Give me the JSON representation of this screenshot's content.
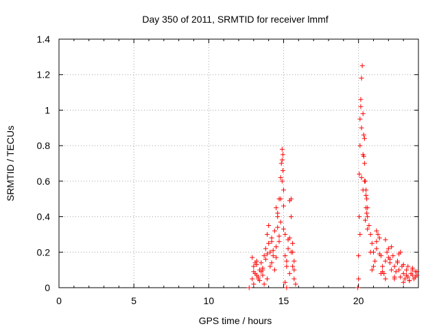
{
  "chart_data": {
    "type": "scatter",
    "title": "Day 350 of 2011, SRMTID for receiver lmmf",
    "xlabel": "GPS time / hours",
    "ylabel": "SRMTID / TECUs",
    "xlim": [
      0,
      24
    ],
    "ylim": [
      0,
      1.4
    ],
    "xticks": [
      0,
      5,
      10,
      15,
      20
    ],
    "xtick_labels": [
      "0",
      "5",
      "10",
      "15",
      "20"
    ],
    "yticks": [
      0,
      0.2,
      0.4,
      0.6,
      0.8,
      1.0,
      1.2,
      1.4
    ],
    "ytick_labels": [
      "0",
      "0.2",
      "0.4",
      "0.6",
      "0.8",
      "1",
      "1.2",
      "1.4"
    ],
    "grid": true,
    "marker": "+",
    "color": "#ff0000",
    "series": [
      {
        "x": [
          12.7,
          12.9,
          13.0,
          13.1,
          13.2,
          13.3,
          13.4,
          13.5,
          13.6,
          13.7,
          13.8,
          13.9,
          14.0,
          14.1,
          14.2,
          14.3,
          14.4,
          14.5,
          14.6,
          14.7,
          14.8,
          14.85,
          14.9,
          14.95,
          15.0,
          15.1,
          15.2,
          15.3,
          15.4,
          15.5,
          15.6,
          15.7,
          15.8,
          12.9,
          13.0,
          13.2,
          13.4,
          13.6,
          13.8,
          14.0,
          14.2,
          14.4,
          14.6,
          14.8,
          15.0,
          15.2,
          15.4,
          15.6,
          13.0,
          13.3,
          13.6,
          13.9,
          14.2,
          14.5,
          14.8,
          15.1,
          15.4,
          15.7,
          13.1,
          13.5,
          13.9,
          14.3,
          14.7,
          15.1,
          15.5,
          13.2,
          13.7,
          14.1,
          14.5,
          14.9,
          15.3,
          15.7,
          15.2,
          15.5,
          15.6,
          14.9,
          14.95,
          15.0,
          14.6,
          14.7,
          19.95,
          20.0,
          20.05,
          20.1,
          20.15,
          20.2,
          20.25,
          20.3,
          20.35,
          20.4,
          20.45,
          20.5,
          20.55,
          20.6,
          20.7,
          20.8,
          20.9,
          21.0,
          21.1,
          21.2,
          21.3,
          21.4,
          21.5,
          21.6,
          21.7,
          21.8,
          21.9,
          22.0,
          22.1,
          22.2,
          22.3,
          22.4,
          22.5,
          22.6,
          22.7,
          22.8,
          22.9,
          23.0,
          23.1,
          23.2,
          23.3,
          23.4,
          23.5,
          23.6,
          23.7,
          23.8,
          23.9,
          20.1,
          20.2,
          20.3,
          20.4,
          20.5,
          20.6,
          20.8,
          21.0,
          21.2,
          21.4,
          21.6,
          21.8,
          22.0,
          22.2,
          22.4,
          22.6,
          22.8,
          23.0,
          23.2,
          23.4,
          23.6,
          23.8,
          20.0,
          20.3,
          20.6,
          20.9,
          21.2,
          21.5,
          21.8,
          22.1,
          22.4,
          22.7,
          23.0,
          23.3,
          23.6,
          23.9,
          20.1,
          20.15,
          20.05,
          20.2,
          20.35,
          20.4,
          20.45,
          20.5,
          20.55
        ],
        "y": [
          0.0,
          0.17,
          0.12,
          0.08,
          0.15,
          0.05,
          0.1,
          0.14,
          0.07,
          0.18,
          0.22,
          0.3,
          0.25,
          0.2,
          0.28,
          0.18,
          0.32,
          0.45,
          0.4,
          0.5,
          0.62,
          0.7,
          0.78,
          0.75,
          0.55,
          0.3,
          0.15,
          0.22,
          0.28,
          0.2,
          0.12,
          0.05,
          0.02,
          0.05,
          0.09,
          0.13,
          0.04,
          0.11,
          0.16,
          0.35,
          0.26,
          0.1,
          0.42,
          0.5,
          0.33,
          0.12,
          0.49,
          0.25,
          0.02,
          0.06,
          0.1,
          0.19,
          0.14,
          0.23,
          0.37,
          0.18,
          0.08,
          0.15,
          0.14,
          0.09,
          0.05,
          0.21,
          0.29,
          0.03,
          0.4,
          0.07,
          0.02,
          0.12,
          0.17,
          0.6,
          0.27,
          0.1,
          0.0,
          0.5,
          0.2,
          0.72,
          0.66,
          0.46,
          0.34,
          0.26,
          0.0,
          0.18,
          0.4,
          0.8,
          1.06,
          1.18,
          1.25,
          0.98,
          0.86,
          0.7,
          0.6,
          0.55,
          0.5,
          0.45,
          0.35,
          0.3,
          0.25,
          0.2,
          0.15,
          0.22,
          0.3,
          0.28,
          0.18,
          0.12,
          0.08,
          0.15,
          0.2,
          0.22,
          0.14,
          0.1,
          0.18,
          0.12,
          0.09,
          0.14,
          0.1,
          0.06,
          0.12,
          0.08,
          0.05,
          0.1,
          0.06,
          0.04,
          0.08,
          0.11,
          0.05,
          0.09,
          0.07,
          0.3,
          0.62,
          0.75,
          0.84,
          0.45,
          0.33,
          0.2,
          0.12,
          0.26,
          0.19,
          0.09,
          0.05,
          0.17,
          0.23,
          0.06,
          0.15,
          0.2,
          0.13,
          0.07,
          0.04,
          0.1,
          0.06,
          0.05,
          0.55,
          0.4,
          0.1,
          0.32,
          0.08,
          0.27,
          0.16,
          0.05,
          0.19,
          0.03,
          0.12,
          0.07,
          0.09,
          0.95,
          1.02,
          0.64,
          0.9,
          0.74,
          0.6,
          0.38,
          0.52,
          0.42
        ]
      }
    ]
  }
}
